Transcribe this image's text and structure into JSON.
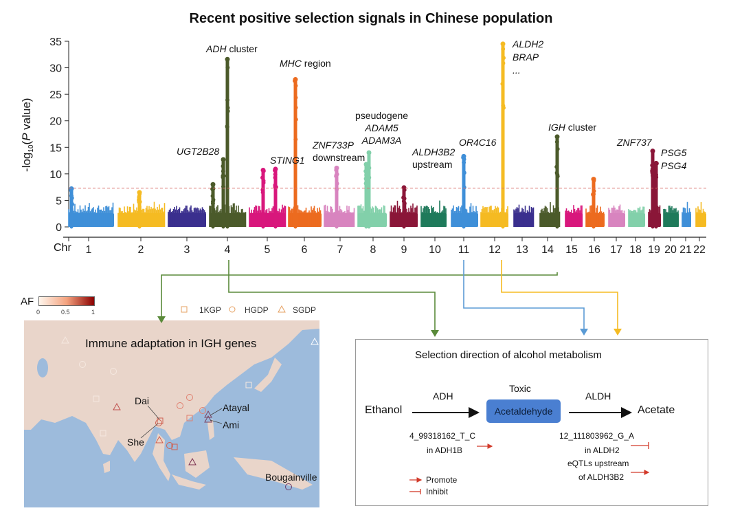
{
  "chart_data": {
    "type": "scatter",
    "subtype": "manhattan",
    "title": "Recent positive selection signals in Chinese population",
    "ylabel": "-log10(P value)",
    "ylabel_parts": {
      "pre": "-log",
      "sub": "10",
      "mid": "(",
      "it": "P",
      "post": " value)"
    },
    "xlabel": "Chr",
    "ylim": [
      0,
      35
    ],
    "yticks": [
      0,
      5,
      10,
      15,
      20,
      25,
      30,
      35
    ],
    "significance_threshold": 7.3,
    "threshold_color": "#d9706e",
    "grid": false,
    "chromosomes": [
      {
        "name": "1",
        "color": "#3f8fd8",
        "max": 7.2
      },
      {
        "name": "2",
        "color": "#f5bb22",
        "max": 6.5
      },
      {
        "name": "3",
        "color": "#3a2f8e",
        "max": 5.2
      },
      {
        "name": "4",
        "color": "#4b5a2a",
        "max": 31.6
      },
      {
        "name": "5",
        "color": "#d8177c",
        "max": 10.7
      },
      {
        "name": "6",
        "color": "#ec6b1f",
        "max": 27.8
      },
      {
        "name": "7",
        "color": "#d884bf",
        "max": 11.1
      },
      {
        "name": "8",
        "color": "#82d0aa",
        "max": 14.0
      },
      {
        "name": "9",
        "color": "#8a1638",
        "max": 7.4
      },
      {
        "name": "10",
        "color": "#1f7a5b",
        "max": 5.5
      },
      {
        "name": "11",
        "color": "#3f8fd8",
        "max": 13.3
      },
      {
        "name": "12",
        "color": "#f5bb22",
        "max": 34.5
      },
      {
        "name": "13",
        "color": "#3a2f8e",
        "max": 5.2
      },
      {
        "name": "14",
        "color": "#4b5a2a",
        "max": 17.0
      },
      {
        "name": "15",
        "color": "#d8177c",
        "max": 5.3
      },
      {
        "name": "16",
        "color": "#ec6b1f",
        "max": 9.0
      },
      {
        "name": "17",
        "color": "#d884bf",
        "max": 5.0
      },
      {
        "name": "18",
        "color": "#82d0aa",
        "max": 4.5
      },
      {
        "name": "19",
        "color": "#8a1638",
        "max": 14.3
      },
      {
        "name": "20",
        "color": "#1f7a5b",
        "max": 4.0
      },
      {
        "name": "21",
        "color": "#3f8fd8",
        "max": 4.7
      },
      {
        "name": "22",
        "color": "#f5bb22",
        "max": 6.2
      }
    ],
    "annotations": [
      {
        "chr": "4",
        "italic": "ADH",
        "text": " cluster",
        "value": 31.6
      },
      {
        "chr": "4",
        "italic": "UGT2B28",
        "text": "",
        "value": 12.7
      },
      {
        "chr": "6",
        "italic": "MHC",
        "text": " region",
        "value": 27.8
      },
      {
        "chr": "5",
        "italic": "STING1",
        "text": "",
        "value": 10.7
      },
      {
        "chr": "7",
        "italic": "ZNF733P",
        "text": "downstream",
        "value": 11.1
      },
      {
        "chr": "8",
        "italic": "ADAM5\nADAM3A",
        "text": "pseudogene",
        "value": 14.0
      },
      {
        "chr": "11",
        "italic": "ALDH3B2",
        "text": "upstream",
        "value": 13.3
      },
      {
        "chr": "12",
        "italic": "OR4C16",
        "text": "",
        "value": 22.0
      },
      {
        "chr": "12",
        "italic": "ALDH2\nBRAP\n...",
        "text": "",
        "value": 34.5
      },
      {
        "chr": "14",
        "italic": "IGH",
        "text": " cluster",
        "value": 17.0
      },
      {
        "chr": "19",
        "italic": "ZNF737",
        "text": "",
        "value": 14.3
      },
      {
        "chr": "19",
        "italic": "PSG5\nPSG4",
        "text": "",
        "value": 12.0
      }
    ]
  },
  "connector_colors": {
    "chr4": "#5a8a3a",
    "chr14": "#5a8a3a",
    "chr11": "#5b9bd5",
    "chr12": "#f5bb22"
  },
  "map": {
    "title": "Immune adaptation in IGH genes",
    "af_legend": {
      "label": "AF",
      "ticks": [
        "0",
        "0.5",
        "1"
      ],
      "colors": [
        "#fff5ec",
        "#f4a37f",
        "#8b0000"
      ]
    },
    "datasets": [
      {
        "name": "1KGP",
        "shape": "square"
      },
      {
        "name": "HGDP",
        "shape": "circle"
      },
      {
        "name": "SGDP",
        "shape": "triangle"
      }
    ],
    "populations": [
      "Dai",
      "She",
      "Atayal",
      "Ami",
      "Bougainville"
    ],
    "ocean_color": "#9dbbdc",
    "land_color": "#e9d5ca"
  },
  "pathway": {
    "title": "Selection direction of alcohol metabolism",
    "substrate": "Ethanol",
    "enzyme1": "ADH",
    "toxic_label": "Toxic",
    "intermediate": "Acetaldehyde",
    "enzyme2": "ALDH",
    "product": "Acetate",
    "variant1_line1": "4_99318162_T_C",
    "variant1_line2": "in ADH1B",
    "variant2_line1": "12_111803962_G_A",
    "variant2_line2": "in ALDH2",
    "variant3_line1": "eQTLs upstream",
    "variant3_line2": "of ALDH3B2",
    "legend_promote": "Promote",
    "legend_inhibit": "Inhibit",
    "effect_color": "#d23a2a"
  }
}
